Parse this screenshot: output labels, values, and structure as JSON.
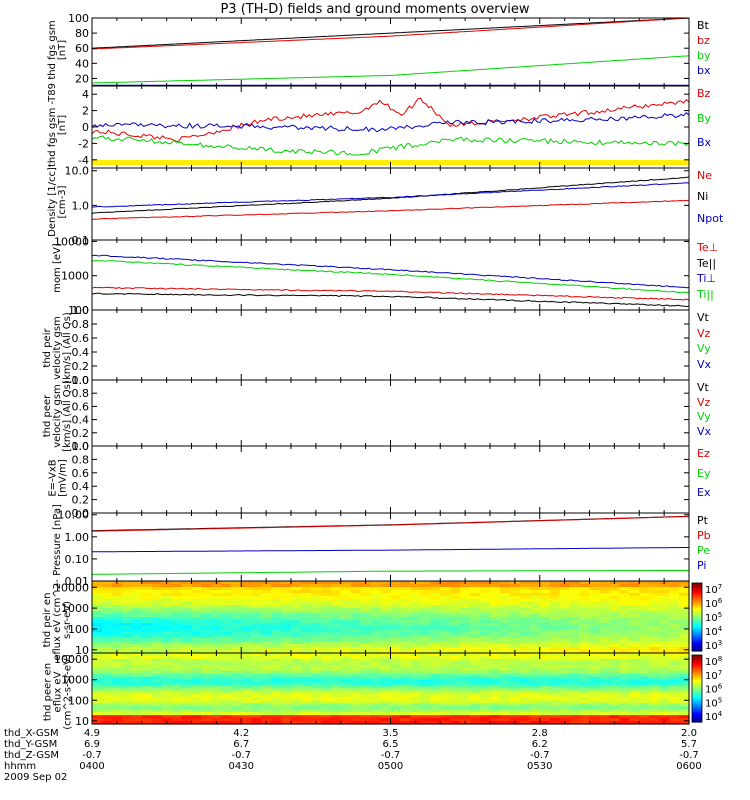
{
  "title": "P3 (TH-D) fields and ground moments overview",
  "date": "2009 Sep 02",
  "footer": {
    "row_labels": [
      "thd_X-GSM",
      "thd_Y-GSM",
      "thd_Z-GSM",
      "hhmm"
    ],
    "columns": [
      {
        "x": "4.9",
        "y": "6.9",
        "z": "-0.7",
        "t": "0400"
      },
      {
        "x": "4.2",
        "y": "6.7",
        "z": "-0.7",
        "t": "0430"
      },
      {
        "x": "3.5",
        "y": "6.5",
        "z": "-0.7",
        "t": "0500"
      },
      {
        "x": "2.8",
        "y": "6.2",
        "z": "-0.7",
        "t": "0530"
      },
      {
        "x": "2.0",
        "y": "5.7",
        "z": "-0.7",
        "t": "0600"
      }
    ]
  },
  "colors": {
    "black": "#000000",
    "red": "#e00000",
    "green": "#00d000",
    "blue": "#0000c0",
    "yellow": "#ffee00"
  },
  "chart_data": [
    {
      "type": "line",
      "ylabel": "thd fgs gsm [nT]",
      "ylim": [
        10,
        100
      ],
      "yticks": [
        "100",
        "80",
        "60",
        "40",
        "20"
      ],
      "legend": [
        "Bt",
        "bz",
        "by",
        "bx"
      ],
      "series": [
        {
          "name": "Bt",
          "x": [
            0,
            0.5,
            1
          ],
          "values": [
            60,
            80,
            100
          ]
        },
        {
          "name": "bz",
          "x": [
            0,
            0.5,
            1
          ],
          "values": [
            59,
            76,
            100
          ]
        },
        {
          "name": "by",
          "x": [
            0,
            0.5,
            1
          ],
          "values": [
            14,
            24,
            50
          ]
        },
        {
          "name": "bx",
          "x": [
            0,
            0.5,
            1
          ],
          "values": [
            11,
            11,
            11
          ]
        }
      ]
    },
    {
      "type": "line",
      "ylabel": "thd fgs gsm -T89 [nT]",
      "ylim": [
        -5,
        5
      ],
      "yticks": [
        "4",
        "2",
        "0",
        "-2",
        "-4"
      ],
      "legend": [
        "Bz",
        "By",
        "Bx"
      ],
      "series": [
        {
          "name": "Bz",
          "x": [
            0,
            0.15,
            0.3,
            0.45,
            0.48,
            0.52,
            0.55,
            0.6,
            0.8,
            1
          ],
          "values": [
            -0.5,
            -1.5,
            1,
            1.8,
            3.2,
            1.5,
            3.5,
            0.2,
            1.5,
            3.2
          ]
        },
        {
          "name": "By",
          "x": [
            0,
            0.3,
            0.48,
            0.6,
            0.8,
            1
          ],
          "values": [
            0.3,
            0,
            -0.3,
            0.5,
            0.8,
            1.5
          ]
        },
        {
          "name": "Bx",
          "x": [
            0,
            0.3,
            0.45,
            0.6,
            0.8,
            1
          ],
          "values": [
            -1.2,
            -2.8,
            -3.2,
            -1.5,
            -1.8,
            -2.0
          ]
        }
      ]
    },
    {
      "type": "line",
      "ylabel": "Density [1/cc] [cm-3]",
      "yscale": "log",
      "ylim": [
        0.1,
        12
      ],
      "yticks": [
        "10.0",
        "1.0",
        "0.1"
      ],
      "legend": [
        "Ne",
        "Ni",
        "Npot"
      ],
      "series": [
        {
          "name": "Ne",
          "x": [
            0,
            0.5,
            1
          ],
          "values": [
            0.4,
            0.7,
            1.4
          ]
        },
        {
          "name": "Ni",
          "x": [
            0,
            0.5,
            1
          ],
          "values": [
            0.6,
            1.6,
            6.5
          ]
        },
        {
          "name": "Npot",
          "x": [
            0,
            0.5,
            1
          ],
          "values": [
            0.9,
            1.7,
            4.5
          ]
        }
      ]
    },
    {
      "type": "line",
      "ylabel": "mom [eV]",
      "yscale": "log",
      "ylim": [
        100,
        11000
      ],
      "yticks": [
        "10000",
        "1000",
        "100"
      ],
      "legend": [
        "Te⊥",
        "Te||",
        "Ti⊥",
        "Ti||"
      ],
      "series": [
        {
          "name": "Te⊥",
          "x": [
            0,
            0.5,
            1
          ],
          "values": [
            450,
            350,
            200
          ]
        },
        {
          "name": "Te||",
          "x": [
            0,
            0.5,
            1
          ],
          "values": [
            300,
            250,
            130
          ]
        },
        {
          "name": "Ti⊥",
          "x": [
            0,
            0.5,
            1
          ],
          "values": [
            4000,
            1500,
            450
          ]
        },
        {
          "name": "Ti||",
          "x": [
            0,
            0.5,
            1
          ],
          "values": [
            2800,
            1100,
            320
          ]
        }
      ]
    },
    {
      "type": "line",
      "ylabel": "thd peir velocity gsm [km/s] (All Qs)",
      "ylim": [
        0,
        1
      ],
      "yticks": [
        "1.0",
        "0.8",
        "0.6",
        "0.4",
        "0.2",
        "0.0"
      ],
      "legend": [
        "Vt",
        "Vz",
        "Vy",
        "Vx"
      ],
      "series": []
    },
    {
      "type": "line",
      "ylabel": "thd peer velocity gsm [km/s] (All Qs)",
      "ylim": [
        0,
        1
      ],
      "yticks": [
        "1.0",
        "0.8",
        "0.6",
        "0.4",
        "0.2",
        "0.0"
      ],
      "legend": [
        "Vt",
        "Vz",
        "Vy",
        "Vx"
      ],
      "series": []
    },
    {
      "type": "line",
      "ylabel": "E=-VxB [mV/m]",
      "ylim": [
        0,
        1
      ],
      "yticks": [
        "1.0",
        "0.8",
        "0.6",
        "0.4",
        "0.2",
        "0.0"
      ],
      "legend": [
        "Ez",
        "Ey",
        "Ex"
      ],
      "series": []
    },
    {
      "type": "line",
      "ylabel": "Pressure [nPa]",
      "yscale": "log",
      "ylim": [
        0.01,
        12
      ],
      "yticks": [
        "10.00",
        "1.00",
        "0.10",
        "0.01"
      ],
      "legend": [
        "Pt",
        "Pb",
        "Pe",
        "Pi"
      ],
      "series": [
        {
          "name": "Pt",
          "x": [
            0,
            0.5,
            1
          ],
          "values": [
            1.9,
            3.5,
            8.5
          ]
        },
        {
          "name": "Pb",
          "x": [
            0,
            0.5,
            1
          ],
          "values": [
            1.8,
            3.4,
            8.4
          ]
        },
        {
          "name": "Pe",
          "x": [
            0,
            0.5,
            1
          ],
          "values": [
            0.02,
            0.028,
            0.03
          ]
        },
        {
          "name": "Pi",
          "x": [
            0,
            0.5,
            1
          ],
          "values": [
            0.21,
            0.25,
            0.33
          ]
        }
      ]
    },
    {
      "type": "heatmap",
      "ylabel": "thd peir en eflux eV (cm^2-s-sr-eV)",
      "yscale": "log",
      "ylim": [
        7,
        20000
      ],
      "yticks": [
        "10000",
        "1000",
        "100",
        "10"
      ],
      "colorbar_ticks": [
        "10^7",
        "10^6",
        "10^5",
        "10^4",
        "10^3"
      ]
    },
    {
      "type": "heatmap",
      "ylabel": "thd peer en eflux eV (cm^2-s-sr-eV)",
      "yscale": "log",
      "ylim": [
        7,
        20000
      ],
      "yticks": [
        "10000",
        "1000",
        "100",
        "10"
      ],
      "colorbar_ticks": [
        "10^8",
        "10^7",
        "10^6",
        "10^5",
        "10^4"
      ]
    }
  ]
}
